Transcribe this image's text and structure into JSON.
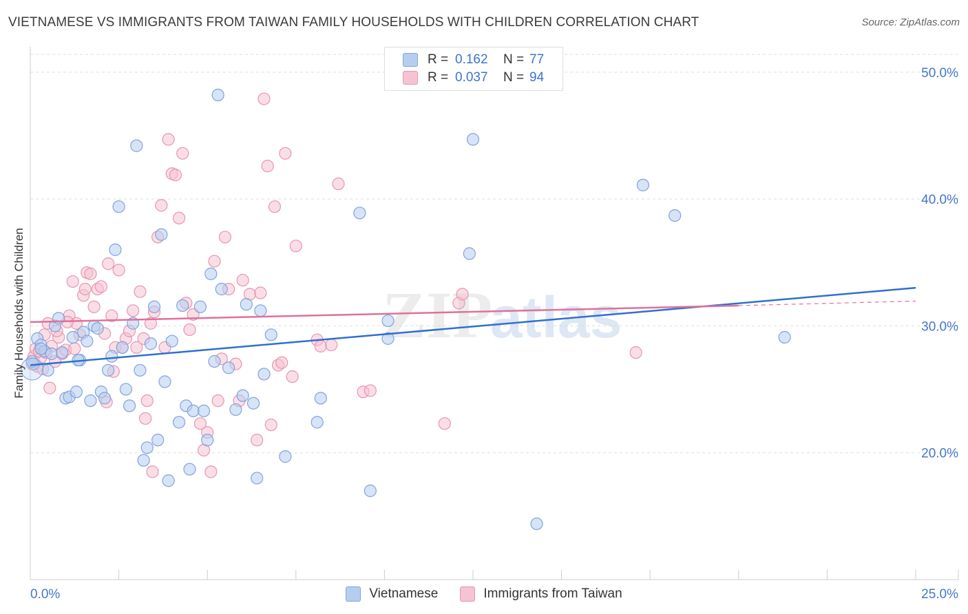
{
  "header": {
    "title": "VIETNAMESE VS IMMIGRANTS FROM TAIWAN FAMILY HOUSEHOLDS WITH CHILDREN CORRELATION CHART",
    "source": "Source: ZipAtlas.com"
  },
  "watermark": {
    "zip": "ZIP",
    "atlas": "atlas"
  },
  "legend": {
    "r_label": "R =",
    "n_label": "N =",
    "rows": [
      {
        "name": "Vietnamese",
        "r": "0.162",
        "n": "77"
      },
      {
        "name": "Immigrants from Taiwan",
        "r": "0.037",
        "n": "94"
      }
    ]
  },
  "colors": {
    "series1_fill": "#b7cdf0",
    "series1_stroke": "#7fa3dc",
    "series1_line": "#2f6fd0",
    "series2_fill": "#f6c3d2",
    "series2_stroke": "#e795b0",
    "series2_line": "#e0709a",
    "axis_text": "#4477cc",
    "grid": "#dddddd"
  },
  "chart_data": {
    "type": "scatter",
    "title": "VIETNAMESE VS IMMIGRANTS FROM TAIWAN FAMILY HOUSEHOLDS WITH CHILDREN CORRELATION CHART",
    "xlabel": "",
    "ylabel": "Family Households with Children",
    "xlim": [
      0,
      25
    ],
    "ylim": [
      10,
      52
    ],
    "x_tick_labels": [
      "0.0%",
      "25.0%"
    ],
    "y_ticks": [
      20,
      30,
      40,
      50
    ],
    "y_tick_labels": [
      "20.0%",
      "30.0%",
      "40.0%",
      "50.0%"
    ],
    "grid": true,
    "series": [
      {
        "name": "Vietnamese",
        "r": 0.162,
        "n": 77,
        "trend": {
          "x": [
            0,
            25
          ],
          "y": [
            26.9,
            33.0
          ]
        },
        "points": [
          [
            0.1,
            27.0
          ],
          [
            0.2,
            29.0
          ],
          [
            0.3,
            28.5
          ],
          [
            0.4,
            28.0
          ],
          [
            0.5,
            26.5
          ],
          [
            0.6,
            27.8
          ],
          [
            0.7,
            30.0
          ],
          [
            0.8,
            30.6
          ],
          [
            1.0,
            24.3
          ],
          [
            1.1,
            24.4
          ],
          [
            1.2,
            29.1
          ],
          [
            1.3,
            24.8
          ],
          [
            1.4,
            27.3
          ],
          [
            1.5,
            29.5
          ],
          [
            1.6,
            28.8
          ],
          [
            1.7,
            24.1
          ],
          [
            1.8,
            30.0
          ],
          [
            1.9,
            29.8
          ],
          [
            2.0,
            24.8
          ],
          [
            2.1,
            24.3
          ],
          [
            2.2,
            26.5
          ],
          [
            2.3,
            27.6
          ],
          [
            2.4,
            36.0
          ],
          [
            2.5,
            39.4
          ],
          [
            2.7,
            25.0
          ],
          [
            2.8,
            23.7
          ],
          [
            2.9,
            30.2
          ],
          [
            3.0,
            44.2
          ],
          [
            3.1,
            26.5
          ],
          [
            3.2,
            19.4
          ],
          [
            3.3,
            20.4
          ],
          [
            3.4,
            28.6
          ],
          [
            3.5,
            31.5
          ],
          [
            3.6,
            21.0
          ],
          [
            3.7,
            37.2
          ],
          [
            3.8,
            25.6
          ],
          [
            3.9,
            17.8
          ],
          [
            4.0,
            28.8
          ],
          [
            4.2,
            22.4
          ],
          [
            4.3,
            31.6
          ],
          [
            4.4,
            23.7
          ],
          [
            4.5,
            18.7
          ],
          [
            4.6,
            23.3
          ],
          [
            4.8,
            31.5
          ],
          [
            4.9,
            23.3
          ],
          [
            5.0,
            21.0
          ],
          [
            5.1,
            34.1
          ],
          [
            5.2,
            27.2
          ],
          [
            5.3,
            48.2
          ],
          [
            5.4,
            32.9
          ],
          [
            5.6,
            26.7
          ],
          [
            5.8,
            23.4
          ],
          [
            6.0,
            24.5
          ],
          [
            6.1,
            31.7
          ],
          [
            6.3,
            23.9
          ],
          [
            6.4,
            18.0
          ],
          [
            6.5,
            31.2
          ],
          [
            6.6,
            26.2
          ],
          [
            6.8,
            29.3
          ],
          [
            7.2,
            19.7
          ],
          [
            8.1,
            22.4
          ],
          [
            8.2,
            24.3
          ],
          [
            9.3,
            38.9
          ],
          [
            9.6,
            17.0
          ],
          [
            10.1,
            29.0
          ],
          [
            10.1,
            30.4
          ],
          [
            12.5,
            44.7
          ],
          [
            12.4,
            35.7
          ],
          [
            14.3,
            14.4
          ],
          [
            17.3,
            41.1
          ],
          [
            18.2,
            38.7
          ],
          [
            21.3,
            29.1
          ],
          [
            0.05,
            27.2
          ],
          [
            0.3,
            28.2
          ],
          [
            0.9,
            27.9
          ],
          [
            1.35,
            27.3
          ],
          [
            2.6,
            28.3
          ]
        ]
      },
      {
        "name": "Immigrants from Taiwan",
        "r": 0.037,
        "n": 94,
        "trend": {
          "x": [
            0,
            20
          ],
          "y": [
            30.3,
            31.6
          ]
        },
        "trend_extension": {
          "x": [
            20,
            25
          ],
          "y": [
            31.6,
            31.95
          ]
        },
        "points": [
          [
            0.1,
            27.6
          ],
          [
            0.15,
            28.2
          ],
          [
            0.2,
            26.8
          ],
          [
            0.3,
            27.5
          ],
          [
            0.4,
            29.3
          ],
          [
            0.5,
            30.2
          ],
          [
            0.6,
            28.4
          ],
          [
            0.7,
            27.2
          ],
          [
            0.8,
            29.1
          ],
          [
            0.9,
            27.8
          ],
          [
            1.0,
            28.1
          ],
          [
            1.1,
            30.8
          ],
          [
            1.2,
            33.5
          ],
          [
            1.3,
            30.2
          ],
          [
            1.4,
            29.3
          ],
          [
            1.5,
            32.4
          ],
          [
            1.6,
            34.2
          ],
          [
            1.7,
            34.1
          ],
          [
            1.8,
            31.5
          ],
          [
            1.9,
            32.9
          ],
          [
            2.0,
            33.1
          ],
          [
            2.1,
            29.4
          ],
          [
            2.2,
            34.9
          ],
          [
            2.3,
            30.8
          ],
          [
            2.4,
            28.3
          ],
          [
            2.5,
            34.4
          ],
          [
            2.6,
            28.3
          ],
          [
            2.7,
            29.0
          ],
          [
            2.8,
            29.6
          ],
          [
            2.9,
            31.2
          ],
          [
            3.0,
            28.3
          ],
          [
            3.1,
            32.7
          ],
          [
            3.2,
            29.0
          ],
          [
            3.3,
            24.1
          ],
          [
            3.4,
            30.2
          ],
          [
            3.5,
            31.1
          ],
          [
            3.6,
            37.0
          ],
          [
            3.7,
            39.5
          ],
          [
            3.8,
            28.3
          ],
          [
            3.9,
            44.7
          ],
          [
            4.0,
            42.0
          ],
          [
            4.1,
            41.9
          ],
          [
            4.2,
            38.5
          ],
          [
            4.3,
            43.6
          ],
          [
            4.4,
            31.8
          ],
          [
            4.5,
            29.7
          ],
          [
            4.6,
            30.9
          ],
          [
            4.8,
            22.3
          ],
          [
            4.9,
            20.2
          ],
          [
            5.0,
            21.6
          ],
          [
            5.1,
            18.5
          ],
          [
            5.2,
            35.1
          ],
          [
            5.3,
            24.1
          ],
          [
            5.4,
            27.4
          ],
          [
            5.5,
            37.0
          ],
          [
            5.6,
            32.9
          ],
          [
            5.8,
            27.0
          ],
          [
            5.9,
            24.1
          ],
          [
            6.0,
            33.6
          ],
          [
            6.2,
            32.5
          ],
          [
            6.4,
            21.0
          ],
          [
            6.5,
            32.6
          ],
          [
            6.6,
            47.9
          ],
          [
            6.7,
            42.6
          ],
          [
            6.8,
            22.2
          ],
          [
            6.9,
            39.4
          ],
          [
            7.0,
            26.9
          ],
          [
            7.1,
            27.1
          ],
          [
            7.2,
            43.6
          ],
          [
            7.4,
            26.0
          ],
          [
            7.5,
            36.3
          ],
          [
            8.1,
            28.9
          ],
          [
            8.2,
            28.4
          ],
          [
            8.5,
            28.5
          ],
          [
            8.7,
            41.2
          ],
          [
            9.4,
            24.8
          ],
          [
            9.6,
            24.9
          ],
          [
            11.7,
            22.3
          ],
          [
            12.1,
            31.8
          ],
          [
            12.2,
            32.5
          ],
          [
            17.1,
            27.9
          ],
          [
            0.05,
            27.0
          ],
          [
            0.25,
            28.0
          ],
          [
            0.35,
            26.6
          ],
          [
            0.55,
            25.1
          ],
          [
            0.75,
            29.6
          ],
          [
            1.05,
            30.3
          ],
          [
            1.25,
            28.2
          ],
          [
            2.35,
            26.4
          ],
          [
            0.45,
            27.9
          ],
          [
            1.55,
            32.9
          ],
          [
            2.15,
            24.0
          ],
          [
            3.25,
            22.7
          ],
          [
            3.45,
            18.5
          ]
        ]
      }
    ]
  },
  "bottom_legend": [
    "Vietnamese",
    "Immigrants from Taiwan"
  ]
}
